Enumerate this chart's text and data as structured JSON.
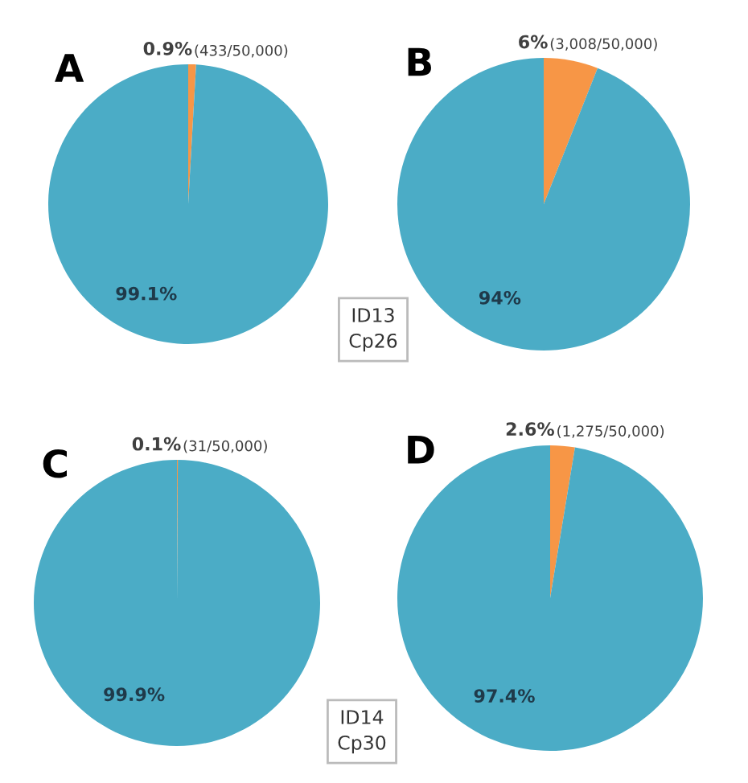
{
  "chart_data": [
    {
      "type": "pie",
      "title": "A",
      "categories": [
        null,
        null
      ],
      "values": [
        0.9,
        99.1
      ],
      "value_labels": [
        "0.9%",
        "99.1%"
      ],
      "colors": [
        "#f79646",
        "#4bacc6"
      ],
      "annotations": [
        "(433/50,000)",
        "ID13\nCp26"
      ]
    },
    {
      "type": "pie",
      "title": "B",
      "categories": [
        null,
        null
      ],
      "values": [
        6,
        94
      ],
      "value_labels": [
        "6%",
        "94%"
      ],
      "colors": [
        "#f79646",
        "#4bacc6"
      ],
      "annotations": [
        "(3,008/50,000)"
      ]
    },
    {
      "type": "pie",
      "title": "C",
      "categories": [
        null,
        null
      ],
      "values": [
        0.1,
        99.9
      ],
      "value_labels": [
        "0.1%",
        "99.9%"
      ],
      "colors": [
        "#f79646",
        "#4bacc6"
      ],
      "annotations": [
        "(31/50,000)",
        "ID14\nCp30"
      ]
    },
    {
      "type": "pie",
      "title": "D",
      "categories": [
        null,
        null
      ],
      "values": [
        2.6,
        97.4
      ],
      "value_labels": [
        "2.6%",
        "97.4%"
      ],
      "colors": [
        "#f79646",
        "#4bacc6"
      ],
      "annotations": [
        "(1,275/50,000)"
      ]
    }
  ]
}
